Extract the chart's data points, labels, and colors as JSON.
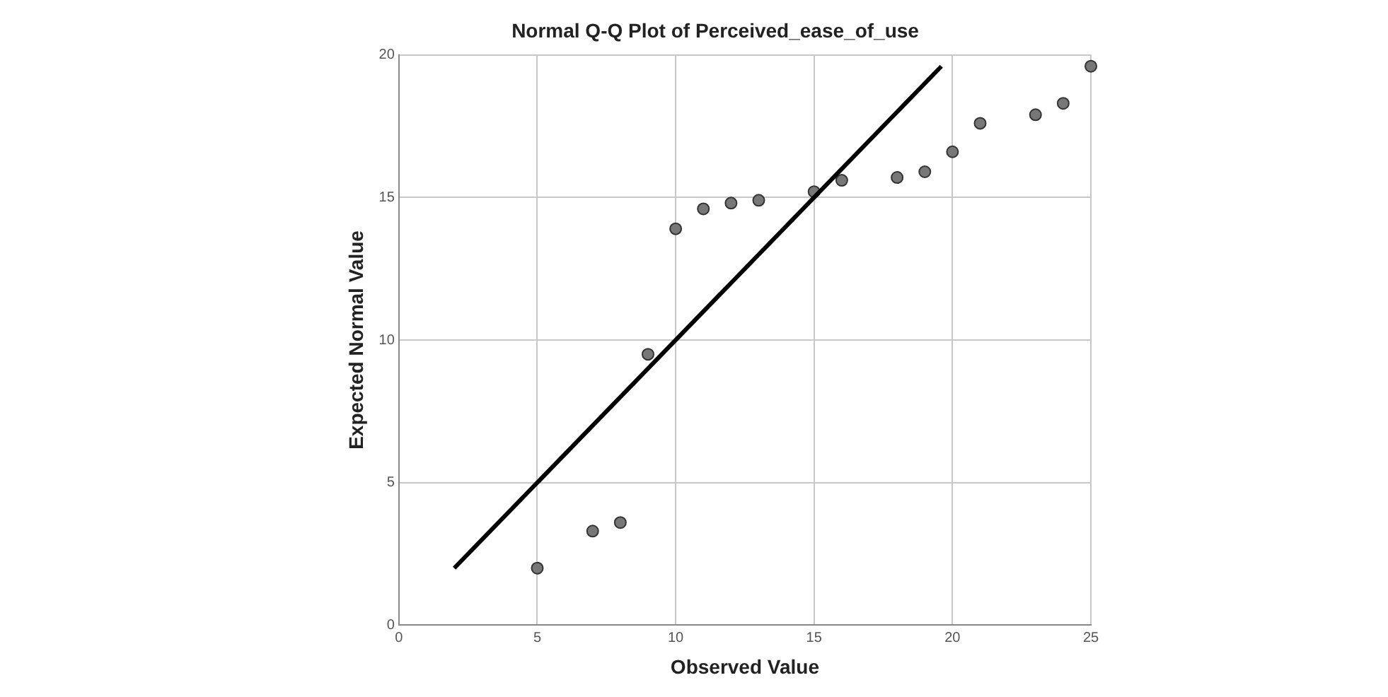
{
  "chart_data": {
    "type": "scatter",
    "title": "Normal Q-Q Plot of Perceived_ease_of_use",
    "xlabel": "Observed Value",
    "ylabel": "Expected Normal Value",
    "series": [
      {
        "color": "#777777",
        "marker": "circle",
        "x": [
          5,
          7,
          8,
          9,
          10,
          11,
          12,
          13,
          15,
          16,
          18,
          19,
          20,
          21,
          23,
          24,
          25
        ],
        "values": [
          2.0,
          3.3,
          3.6,
          9.5,
          13.9,
          14.6,
          14.8,
          14.9,
          15.2,
          15.6,
          15.7,
          15.9,
          16.6,
          17.6,
          17.9,
          18.3,
          19.6
        ]
      },
      {
        "type": "line",
        "color": "#000000",
        "marker": "none",
        "line_style": "solid",
        "x": [
          2,
          19.6
        ],
        "values": [
          2,
          19.6
        ]
      }
    ],
    "xlim": [
      0,
      25
    ],
    "xticks": [
      0,
      5,
      10,
      15,
      20,
      25
    ],
    "ylim": [
      0,
      20
    ],
    "yticks": [
      0,
      5,
      10,
      15,
      20
    ],
    "grid": true,
    "legend": false
  }
}
